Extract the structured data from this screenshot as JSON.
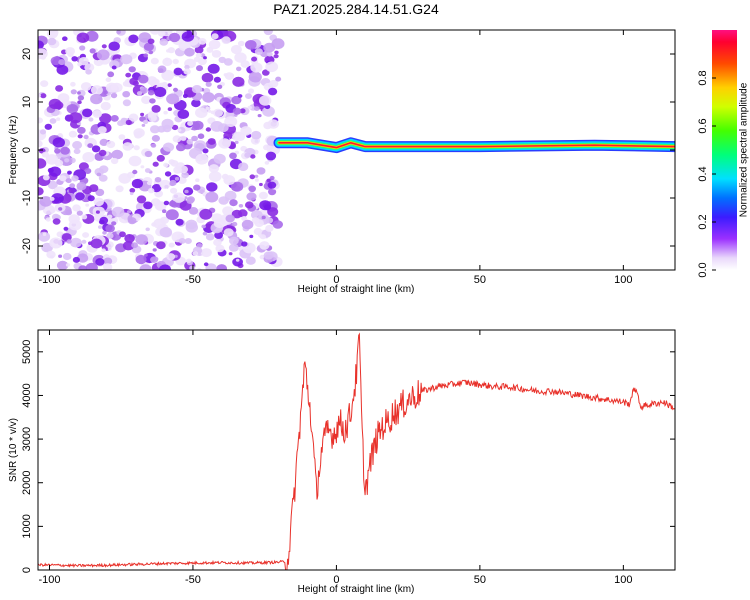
{
  "title": "PAZ1.2025.284.14.51.G24",
  "colors": {
    "noise": "#8a2be2",
    "snr_line": "#e8312a",
    "axis": "#000000"
  },
  "chart_data": [
    {
      "type": "heatmap",
      "xlabel": "Height of straight line (km)",
      "ylabel": "Frequency (Hz)",
      "xlim": [
        -104,
        118
      ],
      "ylim": [
        -25,
        25
      ],
      "xticks": [
        -100,
        -50,
        0,
        50,
        100
      ],
      "xtick_labels": [
        "-100",
        "-50",
        "0",
        "50",
        "100"
      ],
      "yticks": [
        -20,
        -10,
        0,
        10,
        20
      ],
      "ytick_labels": [
        "-20",
        "-10",
        "0",
        "10",
        "20"
      ],
      "noise_region_x": [
        -104,
        -20
      ],
      "signal_ridge": [
        {
          "x": -20,
          "freq": 1.5
        },
        {
          "x": -10,
          "freq": 1.5
        },
        {
          "x": 0,
          "freq": 0.5
        },
        {
          "x": 5,
          "freq": 1.5
        },
        {
          "x": 10,
          "freq": 0.7
        },
        {
          "x": 50,
          "freq": 0.7
        },
        {
          "x": 90,
          "freq": 1.0
        },
        {
          "x": 118,
          "freq": 0.7
        }
      ],
      "colorbar": {
        "label": "Normalized spectral amplitude",
        "range": [
          0,
          1
        ],
        "ticks": [
          0.0,
          0.2,
          0.4,
          0.6,
          0.8
        ],
        "tick_labels": [
          "0.0",
          "0.2",
          "0.4",
          "0.6",
          "0.8"
        ]
      }
    },
    {
      "type": "line",
      "xlabel": "Height of straight line (km)",
      "ylabel": "SNR (10 * v/v)",
      "xlim": [
        -104,
        118
      ],
      "ylim": [
        0,
        5500
      ],
      "xticks": [
        -100,
        -50,
        0,
        50,
        100
      ],
      "xtick_labels": [
        "-100",
        "-50",
        "0",
        "50",
        "100"
      ],
      "yticks": [
        0,
        1000,
        2000,
        3000,
        4000,
        5000
      ],
      "ytick_labels": [
        "0",
        "1000",
        "2000",
        "3000",
        "4000",
        "5000"
      ],
      "series": [
        {
          "color": "#e8312a",
          "x": [
            -104,
            -90,
            -80,
            -70,
            -60,
            -50,
            -40,
            -30,
            -20,
            -17,
            -15,
            -13,
            -11,
            -9,
            -7,
            -5,
            -3,
            -1,
            1,
            3,
            5,
            7,
            8,
            9,
            10,
            12,
            14,
            16,
            18,
            20,
            22,
            25,
            30,
            35,
            40,
            45,
            50,
            55,
            60,
            65,
            70,
            75,
            80,
            85,
            90,
            95,
            100,
            102,
            104,
            106,
            110,
            114,
            118
          ],
          "y": [
            120,
            100,
            110,
            130,
            150,
            160,
            170,
            160,
            180,
            200,
            1500,
            3100,
            4700,
            3600,
            1800,
            2800,
            3200,
            3100,
            3400,
            3200,
            3600,
            4500,
            5300,
            3000,
            1800,
            2500,
            3000,
            3300,
            3400,
            3600,
            3700,
            3900,
            4100,
            4200,
            4250,
            4300,
            4250,
            4200,
            4200,
            4150,
            4100,
            4100,
            4050,
            4000,
            3950,
            3900,
            3850,
            3800,
            4200,
            3750,
            3800,
            3850,
            3700
          ]
        }
      ]
    }
  ]
}
